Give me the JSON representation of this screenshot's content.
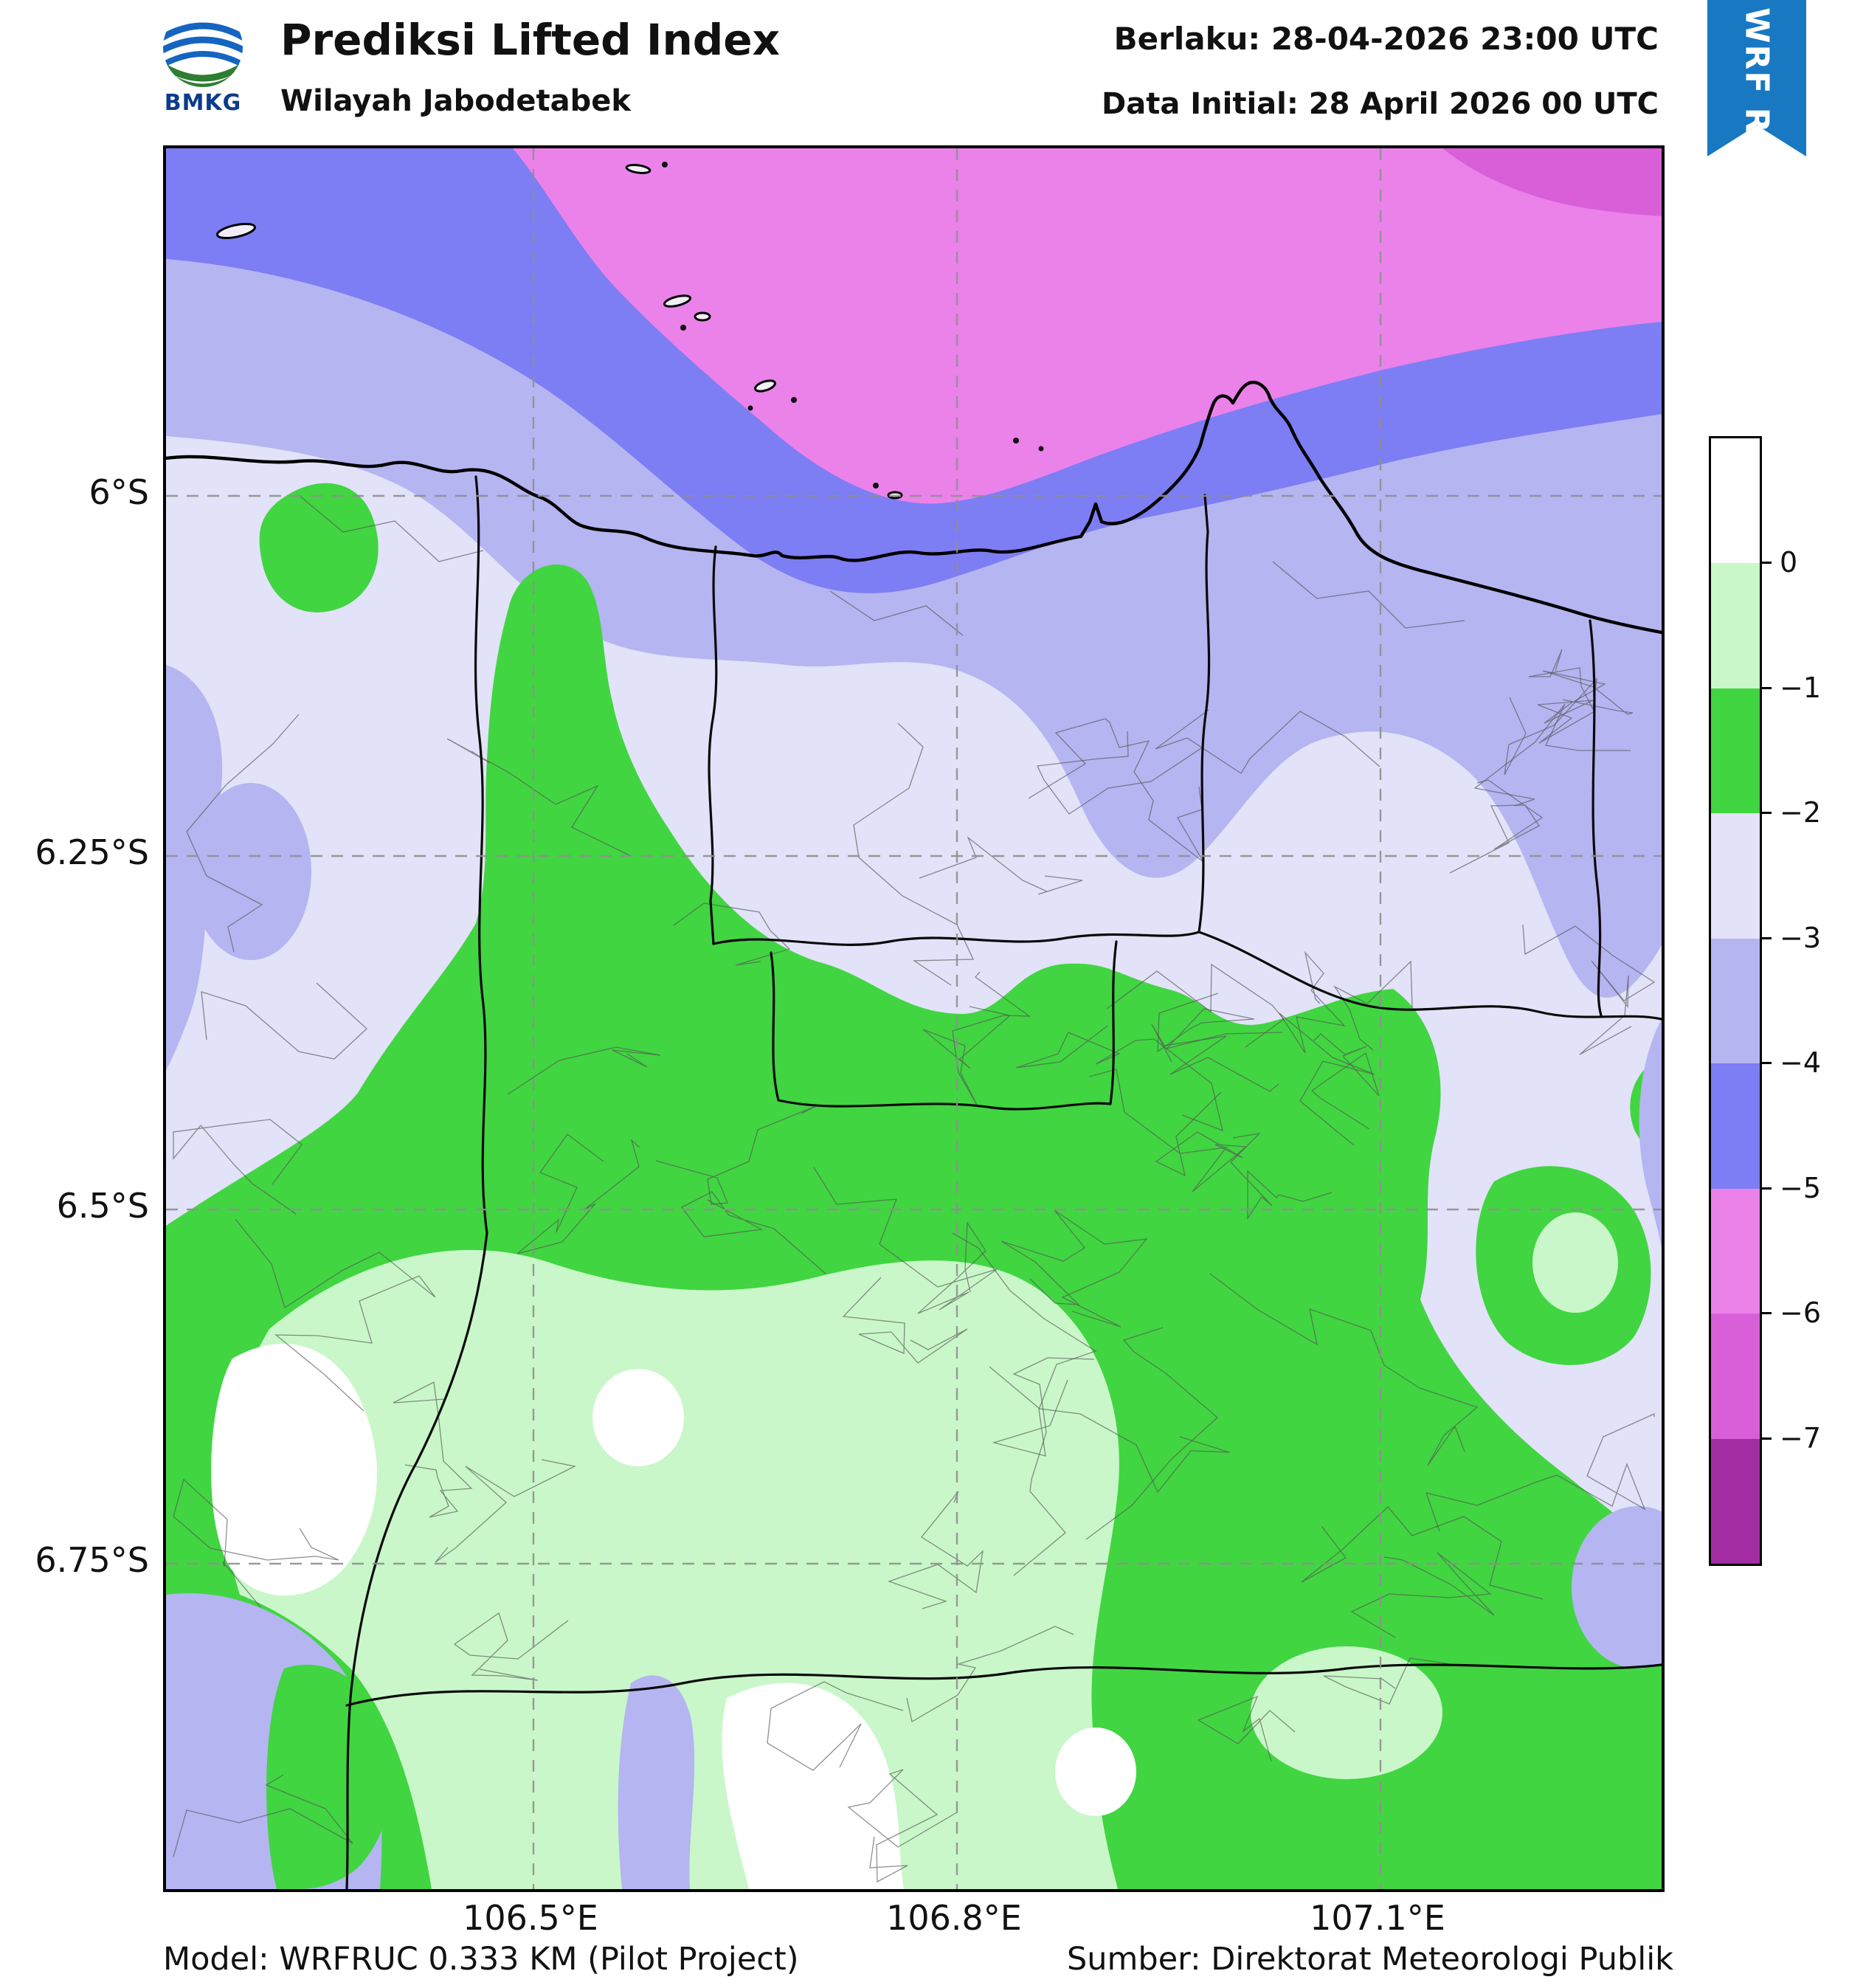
{
  "header": {
    "title": "Prediksi Lifted Index",
    "subtitle": "Wilayah Jabodetabek",
    "valid_label": "Berlaku: 28-04-2026 23:00 UTC",
    "init_label": "Data Initial: 28 April 2026 00 UTC",
    "logo_text": "BMKG"
  },
  "ribbon": {
    "label": "WRF RUC",
    "color": "#1878c2"
  },
  "axes": {
    "x": [
      "106.5°E",
      "106.8°E",
      "107.1°E"
    ],
    "y": [
      "6°S",
      "6.25°S",
      "6.5°S",
      "6.75°S"
    ]
  },
  "palette": {
    "white": "#ffffff",
    "green_light": "#c9f7c9",
    "green": "#41d541",
    "lavender": "#e2e2f8",
    "periwinkle": "#b5b5f2",
    "blue_violet": "#7d7df4",
    "orchid": "#ea82ea",
    "orchid_deep": "#d95fd9",
    "purple": "#a22da2"
  },
  "colorbar": {
    "tick_labels": [
      "0",
      "−1",
      "−2",
      "−3",
      "−4",
      "−5",
      "−6",
      "−7"
    ],
    "orientation": "vertical"
  },
  "footer": {
    "model": "Model: WRFRUC 0.333 KM (Pilot Project)",
    "source": "Sumber: Direktorat Meteorologi Publik"
  }
}
